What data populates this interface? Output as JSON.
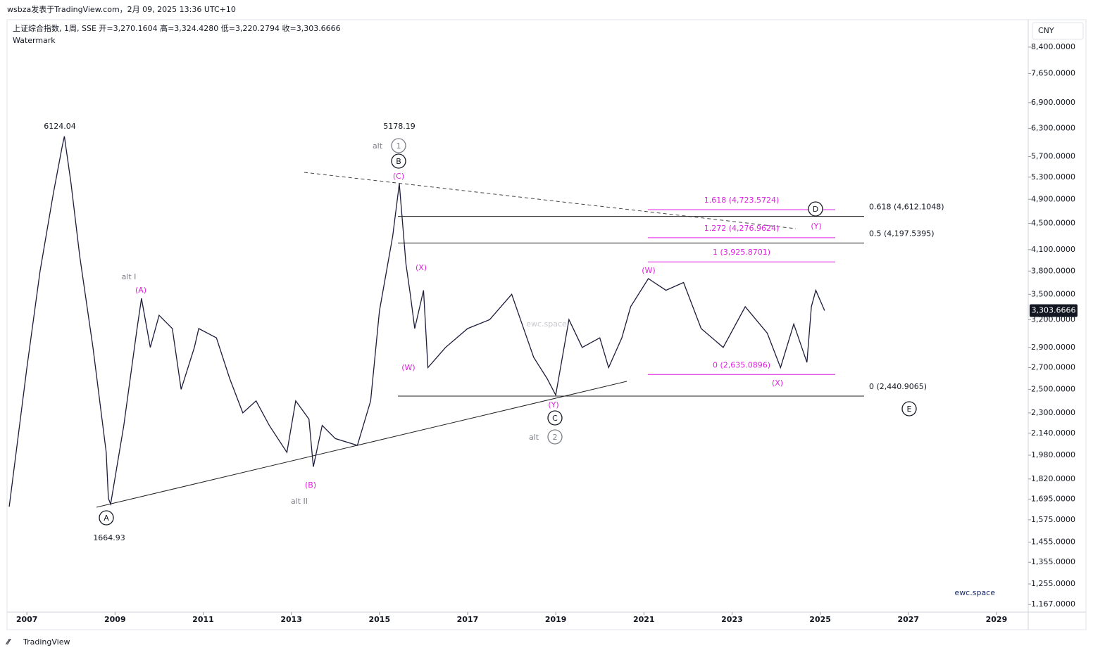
{
  "header": {
    "published": "wsbza发表于TradingView.com，2月 09, 2025 13:36 UTC+10",
    "brand": "TradingView"
  },
  "chart_data": {
    "type": "line",
    "title": "上证综合指数, 1周, SSE  开=3,270.1604  高=3,324.4280  低=3,220.2794  收=3,303.6666",
    "subtitle": "Watermark",
    "currency": "CNY",
    "watermark": "ewc.space",
    "signature": "ewc.space",
    "color": "#1c1c3c",
    "log_scale": true,
    "last_price": {
      "value": 3303.6666,
      "label": "3,303.6666"
    },
    "x": [
      2006.6,
      2007.0,
      2007.3,
      2007.6,
      2007.8,
      2007.85,
      2008.0,
      2008.2,
      2008.5,
      2008.8,
      2008.85,
      2008.9,
      2009.2,
      2009.5,
      2009.6,
      2009.8,
      2010.0,
      2010.3,
      2010.5,
      2010.8,
      2010.9,
      2011.3,
      2011.6,
      2011.9,
      2012.2,
      2012.5,
      2012.9,
      2013.1,
      2013.4,
      2013.5,
      2013.7,
      2014.0,
      2014.5,
      2014.8,
      2015.0,
      2015.3,
      2015.45,
      2015.6,
      2015.7,
      2015.8,
      2016.0,
      2016.1,
      2016.5,
      2017.0,
      2017.5,
      2018.0,
      2018.2,
      2018.5,
      2018.8,
      2019.0,
      2019.3,
      2019.6,
      2020.0,
      2020.2,
      2020.5,
      2020.7,
      2021.1,
      2021.5,
      2021.9,
      2022.3,
      2022.8,
      2023.3,
      2023.8,
      2024.1,
      2024.4,
      2024.7,
      2024.8,
      2024.9,
      2025.1
    ],
    "values": [
      1650,
      2700,
      3800,
      5000,
      5900,
      6124.04,
      5200,
      4000,
      2900,
      2000,
      1700,
      1664.93,
      2200,
      3100,
      3450,
      2900,
      3250,
      3100,
      2500,
      2900,
      3100,
      3000,
      2600,
      2300,
      2400,
      2200,
      2000,
      2400,
      2250,
      1900,
      2200,
      2100,
      2050,
      2400,
      3300,
      4300,
      5178.19,
      3900,
      3500,
      3100,
      3550,
      2700,
      2900,
      3100,
      3200,
      3500,
      3200,
      2800,
      2600,
      2450,
      3200,
      2900,
      3000,
      2700,
      3000,
      3350,
      3700,
      3550,
      3650,
      3100,
      2900,
      3350,
      3050,
      2700,
      3150,
      2750,
      3350,
      3550,
      3303.6666
    ],
    "xlim": [
      2006.55,
      2029.72
    ],
    "xticks": [
      2007,
      2009,
      2011,
      2013,
      2015,
      2017,
      2019,
      2021,
      2023,
      2025,
      2027,
      2029
    ],
    "ylim": [
      1136,
      9255
    ],
    "yticks": [
      {
        "value": 8400,
        "label": "8,400.0000"
      },
      {
        "value": 7650,
        "label": "7,650.0000"
      },
      {
        "value": 6900,
        "label": "6,900.0000"
      },
      {
        "value": 6300,
        "label": "6,300.0000"
      },
      {
        "value": 5700,
        "label": "5,700.0000"
      },
      {
        "value": 5300,
        "label": "5,300.0000"
      },
      {
        "value": 4900,
        "label": "4,900.0000"
      },
      {
        "value": 4500,
        "label": "4,500.0000"
      },
      {
        "value": 4100,
        "label": "4,100.0000"
      },
      {
        "value": 3800,
        "label": "3,800.0000"
      },
      {
        "value": 3500,
        "label": "3,500.0000"
      },
      {
        "value": 3200,
        "label": "3,200.0000"
      },
      {
        "value": 2900,
        "label": "2,900.0000"
      },
      {
        "value": 2700,
        "label": "2,700.0000"
      },
      {
        "value": 2500,
        "label": "2,500.0000"
      },
      {
        "value": 2300,
        "label": "2,300.0000"
      },
      {
        "value": 2140,
        "label": "2,140.0000"
      },
      {
        "value": 1980,
        "label": "1,980.0000"
      },
      {
        "value": 1820,
        "label": "1,820.0000"
      },
      {
        "value": 1695,
        "label": "1,695.0000"
      },
      {
        "value": 1575,
        "label": "1,575.0000"
      },
      {
        "value": 1455,
        "label": "1,455.0000"
      },
      {
        "value": 1355,
        "label": "1,355.0000"
      },
      {
        "value": 1255,
        "label": "1,255.0000"
      },
      {
        "value": 1167,
        "label": "1,167.0000"
      }
    ],
    "fib_black": [
      {
        "value": 4612.1048,
        "label": "0.618 (4,612.1048)"
      },
      {
        "value": 4197.5395,
        "label": "0.5 (4,197.5395)"
      },
      {
        "value": 2440.9065,
        "label": "0 (2,440.9065)"
      }
    ],
    "fib_magenta": [
      {
        "value": 4723.5724,
        "label": "1.618 (4,723.5724)"
      },
      {
        "value": 4276.9624,
        "label": "1.272 (4,276.9624)"
      },
      {
        "value": 3925.8701,
        "label": "1 (3,925.8701)"
      },
      {
        "value": 2635.0896,
        "label": "0 (2,635.0896)"
      }
    ],
    "annotations": [
      {
        "text": "6124.04",
        "style": "plain"
      },
      {
        "text": "1664.93",
        "style": "plain"
      },
      {
        "text": "5178.19",
        "style": "plain"
      },
      {
        "text": "alt",
        "style": "gray"
      },
      {
        "text": "1",
        "style": "gray-circle"
      },
      {
        "text": "B",
        "style": "circle"
      },
      {
        "text": "(C)",
        "style": "magenta"
      },
      {
        "text": "alt I",
        "style": "gray"
      },
      {
        "text": "(A)",
        "style": "magenta"
      },
      {
        "text": "(B)",
        "style": "magenta"
      },
      {
        "text": "alt II",
        "style": "gray"
      },
      {
        "text": "A",
        "style": "circle"
      },
      {
        "text": "(X)",
        "style": "magenta"
      },
      {
        "text": "(W)",
        "style": "magenta"
      },
      {
        "text": "(Y)",
        "style": "magenta"
      },
      {
        "text": "C",
        "style": "circle"
      },
      {
        "text": "alt",
        "style": "gray"
      },
      {
        "text": "2",
        "style": "gray-circle"
      },
      {
        "text": "(W)",
        "style": "magenta"
      },
      {
        "text": "(X)",
        "style": "magenta"
      },
      {
        "text": "D",
        "style": "circle"
      },
      {
        "text": "(Y)",
        "style": "magenta"
      },
      {
        "text": "E",
        "style": "circle"
      }
    ]
  }
}
